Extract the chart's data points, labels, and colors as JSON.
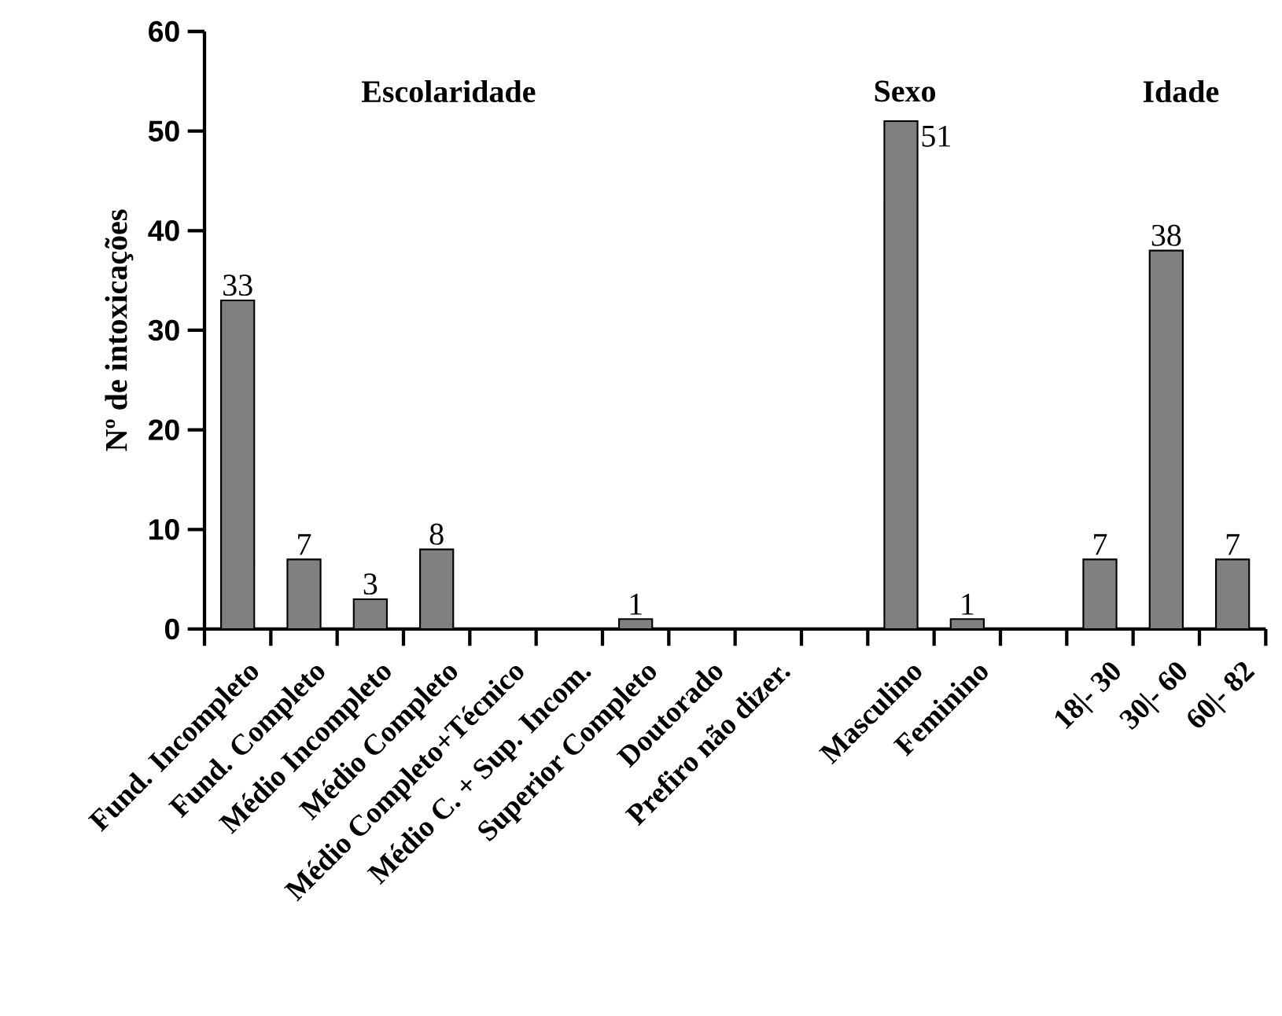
{
  "chart_data": {
    "type": "bar",
    "ylabel": "Nº de intoxicações",
    "categories": [
      "Fund. Incompleto",
      "Fund. Completo",
      "Médio Incompleto",
      "Médio Completo",
      "Médio Completo+Técnico",
      "Médio C. + Sup. Incom.",
      "Superior Completo",
      "Doutorado",
      "Prefiro não dizer.",
      null,
      "Masculino",
      "Feminino",
      null,
      "18|- 30",
      "30|- 60",
      "60|- 82"
    ],
    "values": [
      33,
      7,
      3,
      8,
      0,
      0,
      1,
      0,
      0,
      null,
      51,
      1,
      null,
      7,
      38,
      7
    ],
    "value_labels": [
      "33",
      "7",
      "3",
      "8",
      null,
      null,
      "1",
      null,
      null,
      null,
      "51",
      "1",
      null,
      "7",
      "38",
      "7"
    ],
    "color": "#808080",
    "ylim": [
      0,
      60
    ],
    "yticks": [
      0,
      10,
      20,
      30,
      40,
      50,
      60
    ],
    "annotations": [
      "Escolaridade",
      "Sexo",
      "Idade"
    ]
  }
}
